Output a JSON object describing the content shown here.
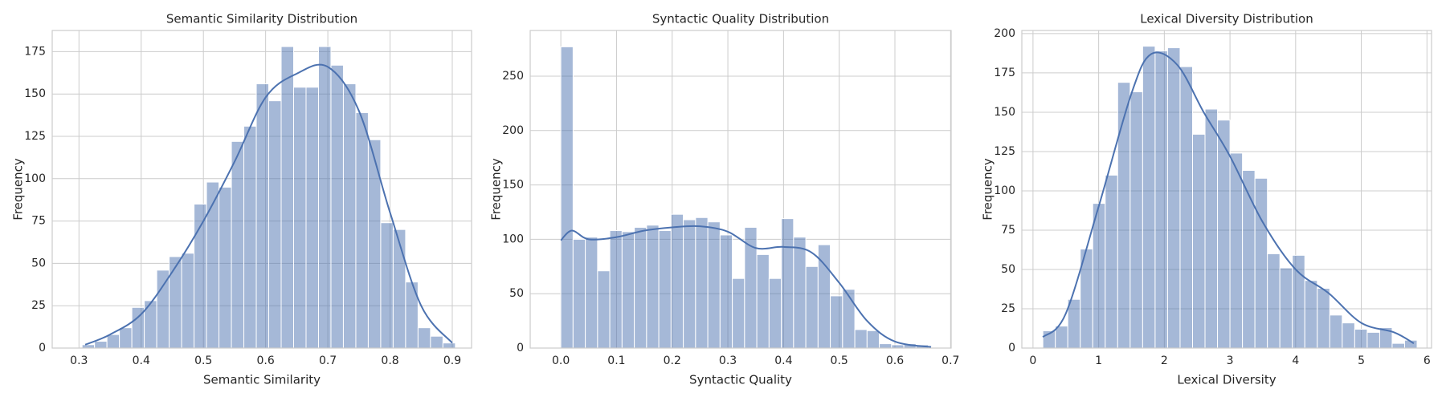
{
  "chart_data": [
    {
      "type": "histogram",
      "title": "Semantic Similarity Distribution",
      "x_label": "Semantic Similarity",
      "y_label": "Frequency",
      "bins": [
        0.305,
        0.325,
        0.345,
        0.365,
        0.385,
        0.405,
        0.425,
        0.445,
        0.465,
        0.485,
        0.505,
        0.525,
        0.545,
        0.565,
        0.585,
        0.605,
        0.625,
        0.645,
        0.665,
        0.685,
        0.705,
        0.725,
        0.745,
        0.765,
        0.785,
        0.805,
        0.825,
        0.845,
        0.865,
        0.885,
        0.905
      ],
      "values": [
        2,
        4,
        8,
        12,
        24,
        28,
        46,
        54,
        56,
        85,
        98,
        95,
        122,
        131,
        156,
        146,
        178,
        154,
        154,
        178,
        167,
        156,
        139,
        123,
        74,
        70,
        39,
        12,
        7,
        3
      ],
      "kde": {
        "x": [
          0.31,
          0.35,
          0.4,
          0.45,
          0.5,
          0.55,
          0.6,
          0.65,
          0.7,
          0.75,
          0.8,
          0.85,
          0.9
        ],
        "values": [
          2,
          8,
          20,
          45,
          75,
          110,
          148,
          162,
          166,
          140,
          80,
          25,
          3
        ]
      },
      "color": "#4c72b0",
      "xlim": [
        0.257,
        0.931
      ],
      "ylim": [
        0,
        187.5
      ],
      "xticks": [
        0.3,
        0.4,
        0.5,
        0.6,
        0.7,
        0.8,
        0.9
      ],
      "yticks": [
        0,
        25,
        50,
        75,
        100,
        125,
        150,
        175
      ],
      "grid": true
    },
    {
      "type": "histogram",
      "title": "Syntactic Quality Distribution",
      "x_label": "Syntactic Quality",
      "y_label": "Frequency",
      "bins": [
        0,
        0.022,
        0.044,
        0.066,
        0.088,
        0.11,
        0.132,
        0.154,
        0.176,
        0.198,
        0.22,
        0.242,
        0.264,
        0.286,
        0.308,
        0.33,
        0.352,
        0.374,
        0.396,
        0.418,
        0.44,
        0.462,
        0.484,
        0.506,
        0.528,
        0.55,
        0.572,
        0.594,
        0.616,
        0.638,
        0.66
      ],
      "values": [
        277,
        100,
        102,
        71,
        108,
        107,
        111,
        113,
        108,
        123,
        118,
        120,
        116,
        104,
        64,
        111,
        86,
        64,
        119,
        102,
        75,
        95,
        48,
        54,
        17,
        16,
        4,
        3,
        4,
        3
      ],
      "kde": {
        "x": [
          0,
          0.02,
          0.05,
          0.1,
          0.15,
          0.2,
          0.25,
          0.3,
          0.35,
          0.4,
          0.45,
          0.5,
          0.55,
          0.6,
          0.665
        ],
        "values": [
          99,
          108,
          100,
          102,
          108,
          111,
          112,
          107,
          92,
          93,
          88,
          60,
          25,
          6,
          1
        ]
      },
      "color": "#4c72b0",
      "xlim": [
        -0.055,
        0.701
      ],
      "ylim": [
        0,
        292
      ],
      "xticks": [
        {
          "value": 0,
          "label": "0.0"
        },
        0.1,
        0.2,
        0.3,
        0.4,
        0.5,
        0.6,
        0.7
      ],
      "yticks": [
        0,
        50,
        100,
        150,
        200,
        250
      ],
      "grid": true
    },
    {
      "type": "histogram",
      "title": "Lexical Diversity Distribution",
      "x_label": "Lexical Diversity",
      "y_label": "Frequency",
      "bins": [
        0.15,
        0.34,
        0.53,
        0.72,
        0.91,
        1.1,
        1.29,
        1.48,
        1.67,
        1.86,
        2.05,
        2.24,
        2.43,
        2.62,
        2.81,
        3.0,
        3.19,
        3.38,
        3.57,
        3.76,
        3.95,
        4.14,
        4.33,
        4.52,
        4.71,
        4.9,
        5.09,
        5.28,
        5.47,
        5.66,
        5.85
      ],
      "values": [
        11,
        14,
        31,
        63,
        92,
        110,
        169,
        163,
        192,
        189,
        191,
        179,
        136,
        152,
        145,
        124,
        113,
        108,
        60,
        51,
        59,
        43,
        38,
        21,
        16,
        12,
        10,
        13,
        3,
        5
      ],
      "kde": {
        "x": [
          0.15,
          0.5,
          1,
          1.5,
          1.8,
          2.2,
          2.6,
          3,
          3.5,
          4,
          4.5,
          5,
          5.5,
          5.8
        ],
        "values": [
          7,
          22,
          90,
          162,
          187,
          180,
          150,
          122,
          80,
          50,
          35,
          16,
          10,
          3
        ]
      },
      "color": "#4c72b0",
      "xlim": [
        -0.17,
        6.07
      ],
      "ylim": [
        0,
        202
      ],
      "xticks": [
        0,
        1,
        2,
        3,
        4,
        5,
        6
      ],
      "yticks": [
        0,
        25,
        50,
        75,
        100,
        125,
        150,
        175,
        200
      ],
      "grid": true
    }
  ]
}
